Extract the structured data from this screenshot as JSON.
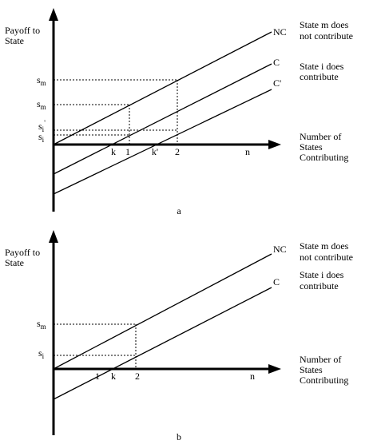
{
  "panels": [
    {
      "y_axis_label": [
        "Payoff to",
        "State"
      ],
      "lines": [
        {
          "label": "NC",
          "description": [
            "State m does",
            "not contribute"
          ]
        },
        {
          "label": "C",
          "description": [
            "State i does",
            "contribute"
          ]
        },
        {
          "label": "C'"
        }
      ],
      "x_axis_label": [
        "Number of",
        "States",
        "Contributing"
      ],
      "y_labels": [
        {
          "base": "s",
          "sub": "m"
        },
        {
          "base": "s",
          "sub": "m"
        },
        {
          "base": "s",
          "sub": "i",
          "sup": "'"
        },
        {
          "base": "s",
          "sub": "i"
        }
      ],
      "x_labels": [
        "k",
        "1",
        "k'",
        "2",
        "n"
      ],
      "caption": "a"
    },
    {
      "y_axis_label": [
        "Payoff to",
        "State"
      ],
      "lines": [
        {
          "label": "NC",
          "description": [
            "State m does",
            "not contribute"
          ]
        },
        {
          "label": "C",
          "description": [
            "State i does",
            "contribute"
          ]
        }
      ],
      "x_axis_label": [
        "Number of",
        "States",
        "Contributing"
      ],
      "y_labels": [
        {
          "base": "s",
          "sub": "m"
        },
        {
          "base": "s",
          "sub": "i"
        }
      ],
      "x_labels": [
        "1",
        "k",
        "2",
        "n"
      ],
      "caption": "b"
    }
  ]
}
